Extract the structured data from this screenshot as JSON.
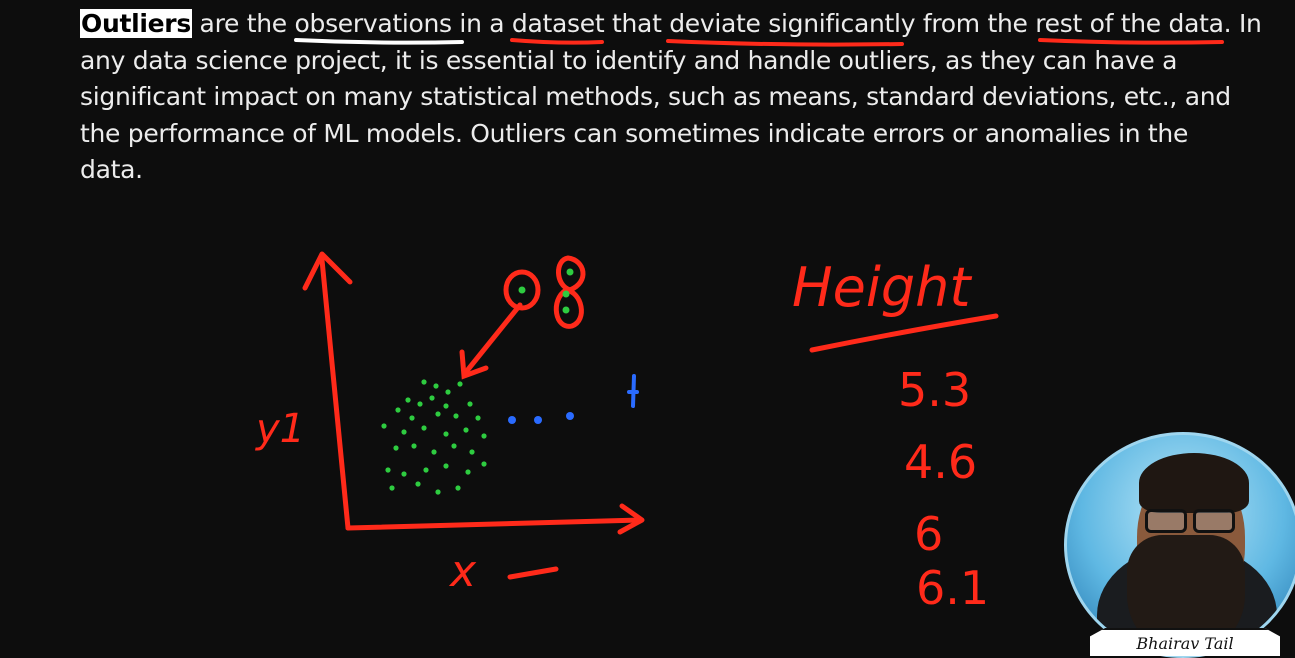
{
  "slide": {
    "paragraph": {
      "term": "Outliers",
      "line1_rest": " are the observations in a dataset that deviate significantly from the rest of the data. In",
      "line2": "any data science project, it is essential to identify and handle outliers, as they can have a",
      "line3": "significant impact on many statistical methods, such as means, standard deviations, etc., and",
      "line4": "the performance of ML models. Outliers can sometimes indicate errors or anomalies in the",
      "line5": "data."
    }
  },
  "annotations": {
    "y_axis_label": "y1",
    "x_axis_label": "x",
    "height_heading": "Height",
    "height_values": [
      "5.3",
      "4.6",
      "6",
      "6.1"
    ]
  },
  "presenter": {
    "name_banner": "Bhairav Tail"
  },
  "colors": {
    "background": "#0d0d0d",
    "text": "#ececec",
    "ink_red": "#ff2a1a",
    "ink_green": "#2ecc40",
    "ink_blue": "#2a6bff",
    "highlight_bg": "#ffffff"
  },
  "icons": {
    "presenter_avatar": "presenter-webcam"
  }
}
